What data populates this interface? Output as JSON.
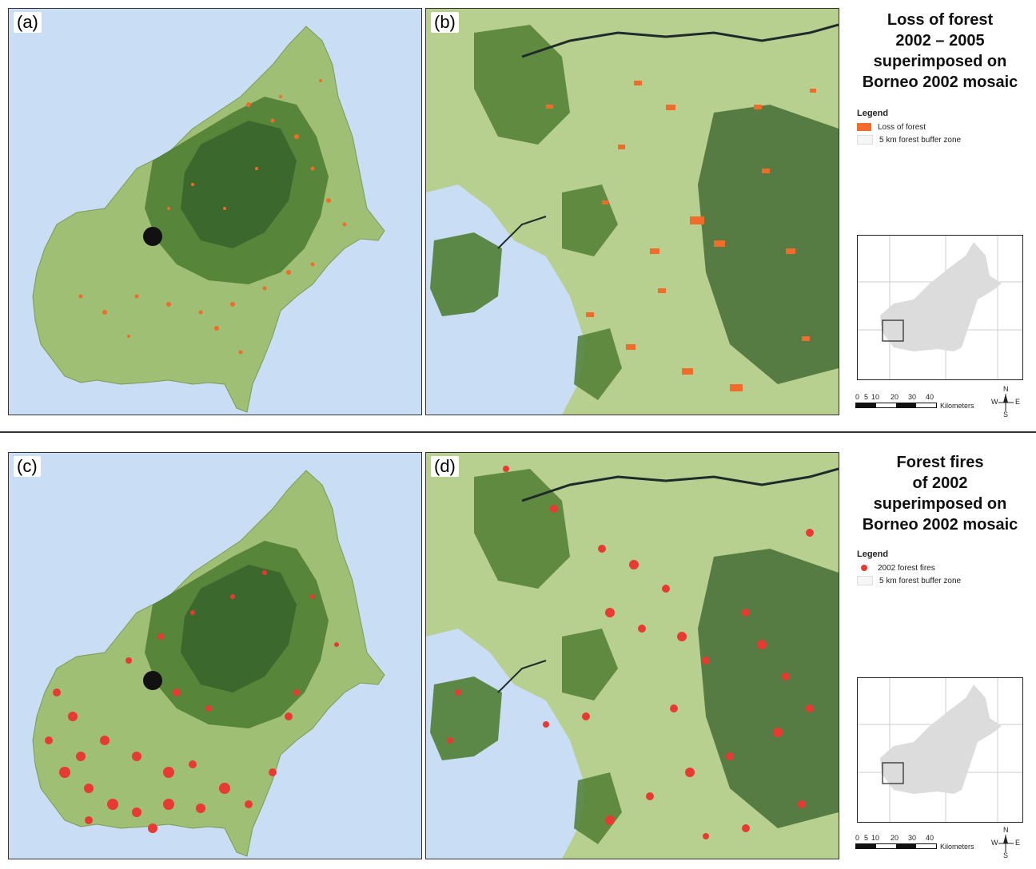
{
  "panels": {
    "a": {
      "label": "(a)"
    },
    "b": {
      "label": "(b)"
    },
    "c": {
      "label": "(c)"
    },
    "d": {
      "label": "(d)"
    }
  },
  "top": {
    "title_lines": [
      "Loss of forest",
      "2002 – 2005",
      "superimposed on",
      "Borneo 2002 mosaic"
    ],
    "legend_title": "Legend",
    "legend_items": [
      "Loss of forest",
      "5 km forest buffer zone"
    ],
    "overlay_color": "#f26b2a"
  },
  "bottom": {
    "title_lines": [
      "Forest fires",
      "of 2002",
      "superimposed on",
      "Borneo 2002 mosaic"
    ],
    "legend_title": "Legend",
    "legend_items": [
      "2002 forest fires",
      "5 km forest buffer zone"
    ],
    "overlay_color": "#e83a32"
  },
  "scalebar": {
    "ticks": [
      "0",
      "5",
      "10",
      "20",
      "30",
      "40"
    ],
    "unit": "Kilometers"
  },
  "compass": {
    "n": "N",
    "s": "S",
    "e": "E",
    "w": "W"
  },
  "colors": {
    "sea": "#c9ddf4",
    "forest_dark": "#3d6b2a",
    "forest_mid": "#6a9a45",
    "land_light": "#b7cf8f"
  }
}
